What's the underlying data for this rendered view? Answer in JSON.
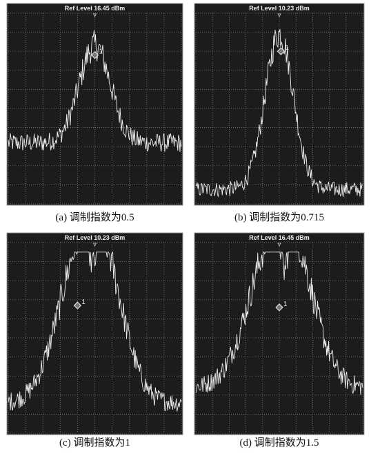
{
  "panels": [
    {
      "ref_level": "Ref Level 16.45 dBm",
      "marker": "1",
      "caption": "(a) 调制指数为0.5"
    },
    {
      "ref_level": "Ref Level 10.23 dBm",
      "marker": "1",
      "caption": "(b) 调制指数为0.715"
    },
    {
      "ref_level": "Ref Level 10.23 dBm",
      "marker": "1",
      "caption": "(c) 调制指数为1"
    },
    {
      "ref_level": "Ref Level 16.45 dBm",
      "marker": "1",
      "caption": "(d) 调制指数为1.5"
    }
  ]
}
